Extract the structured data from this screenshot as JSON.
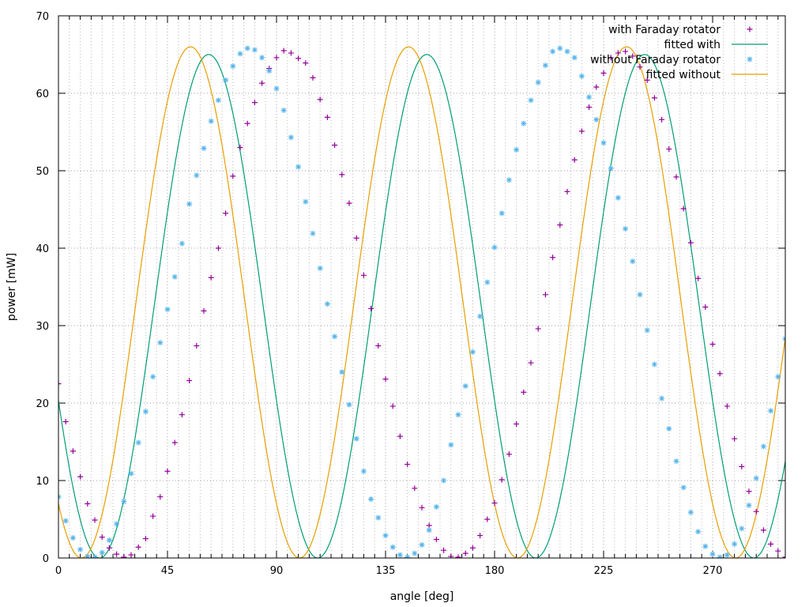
{
  "chart_data": {
    "type": "scatter",
    "title": "",
    "xlabel": "angle [deg]",
    "ylabel": "power [mW]",
    "xlim": [
      0,
      300
    ],
    "ylim": [
      0,
      70
    ],
    "xticks": [
      0,
      45,
      90,
      135,
      180,
      225,
      270
    ],
    "yticks": [
      0,
      10,
      20,
      30,
      40,
      50,
      60,
      70
    ],
    "grid": true,
    "legend_position": "top-right",
    "series": [
      {
        "name": "with Faraday rotator",
        "kind": "points",
        "marker": "plus",
        "color": "#94009b",
        "x": [
          0,
          3,
          6,
          9,
          12,
          15,
          18,
          21,
          24,
          27,
          30,
          33,
          36,
          39,
          42,
          45,
          48,
          51,
          54,
          57,
          60,
          63,
          66,
          69,
          72,
          75,
          78,
          81,
          84,
          87,
          90,
          93,
          96,
          99,
          102,
          105,
          108,
          111,
          114,
          117,
          120,
          123,
          126,
          129,
          132,
          135,
          138,
          141,
          144,
          147,
          150,
          153,
          156,
          159,
          162,
          165,
          168,
          171,
          174,
          177,
          180,
          183,
          186,
          189,
          192,
          195,
          198,
          201,
          204,
          207,
          210,
          213,
          216,
          219,
          222,
          225,
          228,
          231,
          234,
          237,
          240,
          243,
          246,
          249,
          252,
          255,
          258,
          261,
          264,
          267,
          270,
          273,
          276,
          279,
          282,
          285,
          288,
          291,
          294,
          297,
          300
        ],
        "y": [
          22.5,
          17.6,
          13.8,
          10.5,
          7.0,
          4.9,
          2.7,
          1.3,
          0.5,
          0.1,
          0.4,
          1.4,
          2.5,
          5.4,
          7.9,
          11.2,
          14.9,
          18.5,
          22.9,
          27.4,
          31.9,
          36.2,
          40.0,
          44.5,
          49.3,
          53.0,
          56.1,
          58.8,
          61.3,
          63.2,
          64.6,
          65.5,
          65.2,
          64.5,
          63.9,
          62.0,
          59.2,
          56.9,
          53.3,
          49.5,
          45.8,
          41.3,
          36.5,
          32.2,
          27.4,
          23.1,
          19.6,
          15.7,
          12.1,
          9.0,
          6.5,
          4.2,
          2.4,
          1.0,
          0.2,
          0.1,
          0.6,
          1.3,
          2.9,
          5.0,
          7.1,
          10.1,
          13.4,
          17.3,
          21.4,
          25.2,
          29.6,
          34.0,
          38.8,
          43.0,
          47.3,
          51.4,
          55.1,
          58.2,
          60.8,
          62.6,
          64.6,
          65.2,
          65.4,
          64.8,
          63.4,
          61.7,
          59.4,
          56.6,
          52.8,
          49.2,
          45.1,
          40.7,
          36.1,
          32.4,
          27.6,
          23.8,
          19.6,
          15.4,
          11.8,
          8.6,
          6.0,
          3.6,
          1.8,
          0.9,
          0.1
        ]
      },
      {
        "name": "fitted with",
        "kind": "line",
        "color": "#009e73",
        "amplitude": 65.0,
        "period_deg": 90.0,
        "peak_deg": 62.0
      },
      {
        "name": "without Faraday rotator",
        "kind": "points",
        "marker": "star",
        "color": "#56b4e9",
        "x": [
          0,
          3,
          6,
          9,
          12,
          15,
          18,
          21,
          24,
          27,
          30,
          33,
          36,
          39,
          42,
          45,
          48,
          51,
          54,
          57,
          60,
          63,
          66,
          69,
          72,
          75,
          78,
          81,
          84,
          87,
          90,
          93,
          96,
          99,
          102,
          105,
          108,
          111,
          114,
          117,
          120,
          123,
          126,
          129,
          132,
          135,
          138,
          141,
          144,
          147,
          150,
          153,
          156,
          159,
          162,
          165,
          168,
          171,
          174,
          177,
          180,
          183,
          186,
          189,
          192,
          195,
          198,
          201,
          204,
          207,
          210,
          213,
          216,
          219,
          222,
          225,
          228,
          231,
          234,
          237,
          240,
          243,
          246,
          249,
          252,
          255,
          258,
          261,
          264,
          267,
          270,
          273,
          276,
          279,
          282,
          285,
          288,
          291,
          294,
          297,
          300
        ],
        "y": [
          7.9,
          4.8,
          2.6,
          1.1,
          0.2,
          0.1,
          0.7,
          2.3,
          4.4,
          7.3,
          10.9,
          14.9,
          18.9,
          23.4,
          27.8,
          32.1,
          36.3,
          40.6,
          45.7,
          49.4,
          52.9,
          56.4,
          59.1,
          61.7,
          63.5,
          65.1,
          65.8,
          65.6,
          64.6,
          62.9,
          60.6,
          57.8,
          54.3,
          50.5,
          46.0,
          41.9,
          37.4,
          32.8,
          28.6,
          24.0,
          19.8,
          15.4,
          11.2,
          7.6,
          5.2,
          2.9,
          1.4,
          0.4,
          0.1,
          0.6,
          1.7,
          3.6,
          6.6,
          10.0,
          14.6,
          18.5,
          22.2,
          26.6,
          31.2,
          35.6,
          40.1,
          44.5,
          48.8,
          52.7,
          56.1,
          59.1,
          61.4,
          63.6,
          65.4,
          65.8,
          65.4,
          64.6,
          62.2,
          59.5,
          56.6,
          53.6,
          50.3,
          46.5,
          42.5,
          38.3,
          34.0,
          29.4,
          25.0,
          20.6,
          16.7,
          12.5,
          9.1,
          5.9,
          3.4,
          1.5,
          0.5,
          0.1,
          0.4,
          1.8,
          3.8,
          6.8,
          10.3,
          14.4,
          19.0,
          23.4,
          28.3
        ]
      },
      {
        "name": "fitted without",
        "kind": "line",
        "color": "#e69f00",
        "amplitude": 66.0,
        "period_deg": 90.0,
        "peak_deg": 54.5
      }
    ]
  }
}
